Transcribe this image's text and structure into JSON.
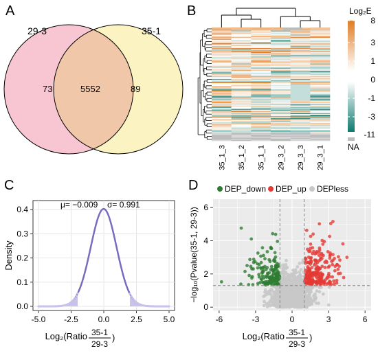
{
  "colors": {
    "set_a_fill": "#f7c6d2",
    "set_b_fill": "#fbf3c2",
    "overlap_fill": "#f0c7a8",
    "heat_low": "#0d7a6e",
    "heat_mid": "#ffffff",
    "heat_high": "#e07b22",
    "heat_na": "#bdbdbd",
    "density_line": "#7b6bbf",
    "density_fill": "#c9c2ea",
    "dep_down": "#2e7d32",
    "dep_up": "#e53935",
    "dep_less": "#c8c8c8"
  },
  "chart_data": [
    {
      "type": "venn",
      "panel_label": "A",
      "sets": [
        {
          "name": "29-3",
          "only": 73
        },
        {
          "name": "35-1",
          "only": 89
        }
      ],
      "intersection": 5552
    },
    {
      "type": "heatmap",
      "panel_label": "B",
      "columns": [
        "35_1_3",
        "35_1_2",
        "35_1_1",
        "29_3_2",
        "29_3_3",
        "29_3_1"
      ],
      "legend_title": "Log₂E",
      "legend_ticks": [
        "8",
        "3",
        "1",
        "0",
        "-1",
        "-3",
        "-11"
      ],
      "legend_na": "NA",
      "row_dendrogram": "left",
      "column_dendrogram": "top"
    },
    {
      "type": "area",
      "panel_label": "C",
      "xlabel_prefix": "Log₂(Ratio",
      "xlabel_num": "35-1",
      "xlabel_den": "29-3",
      "xlabel_suffix": ")",
      "ylabel": "Density",
      "xlim": [
        -5,
        5
      ],
      "ylim": [
        0,
        0.42
      ],
      "xticks": [
        "-5.0",
        "-2.5",
        "0.0",
        "2.5",
        "5.0"
      ],
      "yticks": [
        "0.0",
        "0.1",
        "0.2",
        "0.3",
        "0.4"
      ],
      "mu_label": "μ= −0.009",
      "sigma_label": "σ= 0.991",
      "mu": -0.009,
      "sigma": 0.991,
      "shaded_threshold": 2
    },
    {
      "type": "scatter",
      "panel_label": "D",
      "legend": [
        "DEP_down",
        "DEP_up",
        "DEPless"
      ],
      "xlabel_prefix": "Log₂(Ratio",
      "xlabel_num": "35-1",
      "xlabel_den": "29-3",
      "xlabel_suffix": ")",
      "ylabel": "−log₁₀(Pvalue(35-1, 29-3))",
      "xlim": [
        -6.5,
        6.5
      ],
      "ylim": [
        -0.2,
        6.5
      ],
      "xticks": [
        "-6",
        "-3",
        "0",
        "3",
        "6"
      ],
      "yticks": [
        "0",
        "2",
        "4",
        "6"
      ],
      "fc_threshold": 1,
      "p_threshold_y": 1.3
    }
  ]
}
